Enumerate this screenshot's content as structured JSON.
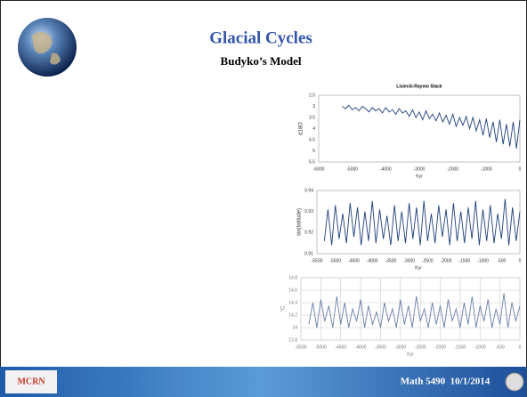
{
  "slide": {
    "title": "Glacial Cycles",
    "subtitle": "Budyko’s Model",
    "footer": "Math 5490  10/1/2014",
    "logo": "MCRN"
  },
  "chart_data": [
    {
      "type": "line",
      "title": "Lisiecki-Raymo Stack",
      "ylabel": "d18O",
      "xlabel": "Kyr",
      "color": "#1f3f7a",
      "grid": false,
      "xlim": [
        -6000,
        0
      ],
      "xticks": [
        -6000,
        -5000,
        -4000,
        -3000,
        -2000,
        -1000,
        0
      ],
      "ylim": [
        5.5,
        2.5
      ],
      "yticks": [
        2.5,
        3,
        3.5,
        4,
        4.5,
        5,
        5.5
      ],
      "x": [
        -5300,
        -5200,
        -5100,
        -5000,
        -4900,
        -4800,
        -4700,
        -4600,
        -4500,
        -4400,
        -4300,
        -4200,
        -4100,
        -4000,
        -3900,
        -3800,
        -3700,
        -3600,
        -3500,
        -3400,
        -3300,
        -3200,
        -3100,
        -3000,
        -2900,
        -2800,
        -2700,
        -2600,
        -2500,
        -2400,
        -2300,
        -2200,
        -2100,
        -2000,
        -1900,
        -1800,
        -1700,
        -1600,
        -1500,
        -1400,
        -1300,
        -1200,
        -1100,
        -1000,
        -900,
        -800,
        -700,
        -600,
        -500,
        -400,
        -300,
        -200,
        -100,
        0
      ],
      "values": [
        3.0,
        3.1,
        2.95,
        3.15,
        3.05,
        3.2,
        3.0,
        3.1,
        3.25,
        3.05,
        3.2,
        3.1,
        3.3,
        3.05,
        3.25,
        3.15,
        3.35,
        3.1,
        3.3,
        3.2,
        3.45,
        3.15,
        3.5,
        3.25,
        3.6,
        3.2,
        3.55,
        3.35,
        3.65,
        3.3,
        3.7,
        3.4,
        3.8,
        3.35,
        3.9,
        3.5,
        3.85,
        3.45,
        4.0,
        3.5,
        4.1,
        3.6,
        4.3,
        3.55,
        4.4,
        3.7,
        4.6,
        3.6,
        4.7,
        3.8,
        4.8,
        3.7,
        4.9,
        3.6
      ]
    },
    {
      "type": "line",
      "ylabel": "sin(latitude)",
      "xlabel": "Kyr",
      "color": "#1f3f7a",
      "grid": false,
      "xlim": [
        -5500,
        0
      ],
      "xticks": [
        -5500,
        -5000,
        -4500,
        -4000,
        -3500,
        -3000,
        -2500,
        -2000,
        -1500,
        -1000,
        -500,
        0
      ],
      "ylim": [
        0.91,
        0.94
      ],
      "yticks": [
        0.91,
        0.92,
        0.93,
        0.94
      ],
      "x": [
        -5300,
        -5200,
        -5100,
        -5000,
        -4900,
        -4800,
        -4700,
        -4600,
        -4500,
        -4400,
        -4300,
        -4200,
        -4100,
        -4000,
        -3900,
        -3800,
        -3700,
        -3600,
        -3500,
        -3400,
        -3300,
        -3200,
        -3100,
        -3000,
        -2900,
        -2800,
        -2700,
        -2600,
        -2500,
        -2400,
        -2300,
        -2200,
        -2100,
        -2000,
        -1900,
        -1800,
        -1700,
        -1600,
        -1500,
        -1400,
        -1300,
        -1200,
        -1100,
        -1000,
        -900,
        -800,
        -700,
        -600,
        -500,
        -400,
        -300,
        -200,
        -100,
        0
      ],
      "values": [
        0.916,
        0.931,
        0.914,
        0.933,
        0.917,
        0.929,
        0.915,
        0.934,
        0.918,
        0.932,
        0.914,
        0.93,
        0.916,
        0.935,
        0.915,
        0.931,
        0.917,
        0.928,
        0.914,
        0.933,
        0.916,
        0.93,
        0.915,
        0.934,
        0.917,
        0.932,
        0.914,
        0.935,
        0.916,
        0.929,
        0.915,
        0.933,
        0.918,
        0.931,
        0.914,
        0.934,
        0.916,
        0.93,
        0.915,
        0.932,
        0.917,
        0.935,
        0.914,
        0.931,
        0.916,
        0.933,
        0.915,
        0.929,
        0.917,
        0.936,
        0.914,
        0.932,
        0.916,
        0.93
      ]
    },
    {
      "type": "line",
      "ylabel": "°C",
      "xlabel": "Kyr",
      "color": "#6a7fa8",
      "grid": true,
      "xlim": [
        -5500,
        0
      ],
      "xticks": [
        -5500,
        -5000,
        -4500,
        -4000,
        -3500,
        -3000,
        -2500,
        -2000,
        -1500,
        -1000,
        -500,
        0
      ],
      "ylim": [
        13.8,
        14.8
      ],
      "yticks": [
        13.8,
        14,
        14.2,
        14.4,
        14.6,
        14.8
      ],
      "x": [
        -5300,
        -5200,
        -5100,
        -5000,
        -4900,
        -4800,
        -4700,
        -4600,
        -4500,
        -4400,
        -4300,
        -4200,
        -4100,
        -4000,
        -3900,
        -3800,
        -3700,
        -3600,
        -3500,
        -3400,
        -3300,
        -3200,
        -3100,
        -3000,
        -2900,
        -2800,
        -2700,
        -2600,
        -2500,
        -2400,
        -2300,
        -2200,
        -2100,
        -2000,
        -1900,
        -1800,
        -1700,
        -1600,
        -1500,
        -1400,
        -1300,
        -1200,
        -1100,
        -1000,
        -900,
        -800,
        -700,
        -600,
        -500,
        -400,
        -300,
        -200,
        -100,
        0
      ],
      "values": [
        14.05,
        14.4,
        14.0,
        14.45,
        14.1,
        14.35,
        14.0,
        14.5,
        14.05,
        14.4,
        14.0,
        14.3,
        14.1,
        14.45,
        14.0,
        14.35,
        14.05,
        14.25,
        14.0,
        14.4,
        14.1,
        14.3,
        14.0,
        14.45,
        14.05,
        14.35,
        14.0,
        14.5,
        14.1,
        14.3,
        14.0,
        14.4,
        14.05,
        14.35,
        14.0,
        14.45,
        14.1,
        14.3,
        14.0,
        14.4,
        14.05,
        14.5,
        14.0,
        14.35,
        14.1,
        14.45,
        14.0,
        14.3,
        14.05,
        14.55,
        14.0,
        14.4,
        14.1,
        14.35
      ]
    }
  ]
}
